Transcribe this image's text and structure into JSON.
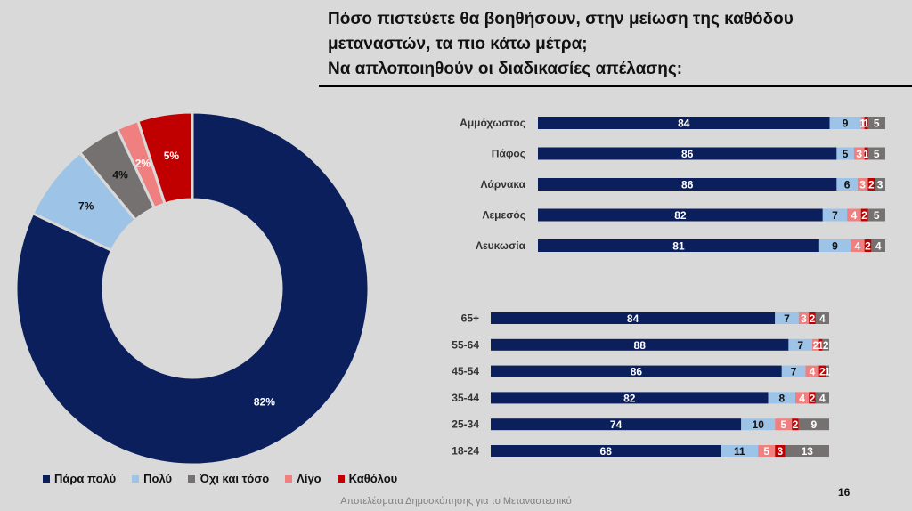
{
  "title_lines": [
    "Πόσο πιστεύετε θα βοηθήσουν, στην μείωση της καθόδου",
    "μεταναστών, τα πιο κάτω μέτρα;",
    "Να απλοποιηθούν οι διαδικασίες απέλασης:"
  ],
  "colors": {
    "para_poly": "#0b1f5c",
    "poly": "#9dc3e6",
    "ochi_kai_toso": "#767171",
    "ligo": "#f08080",
    "katholou": "#c00000"
  },
  "legend": [
    {
      "label": "Πάρα πολύ",
      "color": "#0b1f5c"
    },
    {
      "label": "Πολύ",
      "color": "#9dc3e6"
    },
    {
      "label": "Όχι και τόσο",
      "color": "#767171"
    },
    {
      "label": "Λίγο",
      "color": "#f08080"
    },
    {
      "label": "Καθόλου",
      "color": "#c00000"
    }
  ],
  "chart_data": [
    {
      "type": "pie",
      "categories": [
        "Πάρα πολύ",
        "Πολύ",
        "Όχι και τόσο",
        "Λίγο",
        "Καθόλου"
      ],
      "values": [
        82,
        7,
        4,
        2,
        5
      ],
      "labels": [
        "82%",
        "7%",
        "4%",
        "2%",
        "5%"
      ]
    },
    {
      "type": "bar",
      "orientation": "horizontal",
      "stacked": true,
      "categories": [
        "Αμμόχωστος",
        "Πάφος",
        "Λάρνακα",
        "Λεμεσός",
        "Λευκωσία"
      ],
      "series": [
        {
          "name": "Πάρα πολύ",
          "values": [
            84,
            86,
            86,
            82,
            81
          ]
        },
        {
          "name": "Πολύ",
          "values": [
            9,
            5,
            6,
            7,
            9
          ]
        },
        {
          "name": "Λίγο",
          "values": [
            1,
            3,
            3,
            4,
            4
          ]
        },
        {
          "name": "Καθόλου",
          "values": [
            1,
            1,
            2,
            2,
            2
          ]
        },
        {
          "name": "Όχι και τόσο",
          "values": [
            5,
            5,
            3,
            5,
            4
          ]
        }
      ]
    },
    {
      "type": "bar",
      "orientation": "horizontal",
      "stacked": true,
      "categories": [
        "65+",
        "55-64",
        "45-54",
        "35-44",
        "25-34",
        "18-24"
      ],
      "series": [
        {
          "name": "Πάρα πολύ",
          "values": [
            84,
            88,
            86,
            82,
            74,
            68
          ]
        },
        {
          "name": "Πολύ",
          "values": [
            7,
            7,
            7,
            8,
            10,
            11
          ]
        },
        {
          "name": "Λίγο",
          "values": [
            3,
            2,
            4,
            4,
            5,
            5
          ]
        },
        {
          "name": "Καθόλου",
          "values": [
            2,
            1,
            2,
            2,
            2,
            3
          ]
        },
        {
          "name": "Όχι και τόσο",
          "values": [
            4,
            2,
            1,
            4,
            9,
            13
          ]
        }
      ]
    }
  ],
  "page_number": "16",
  "footer": "Αποτελέσματα Δημοσκόπησης για το Μεταναστευτικό"
}
